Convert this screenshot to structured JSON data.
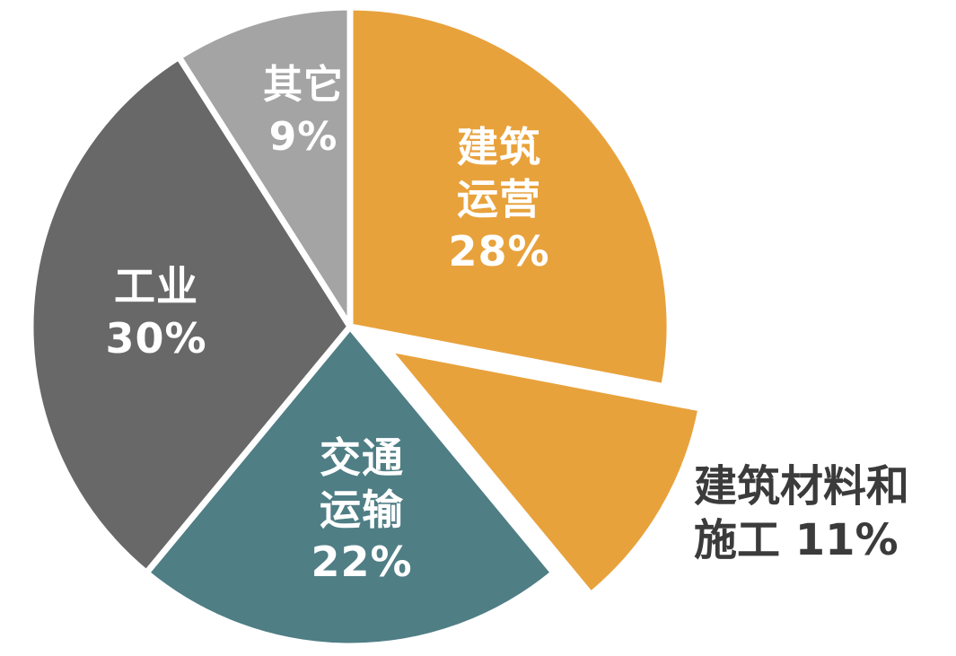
{
  "chart_data": {
    "type": "pie",
    "title": "",
    "legend_position": "none",
    "background": "#FFFFFF",
    "inside_label_color": "#FFFFFF",
    "start_angle_deg": 0,
    "direction": "clockwise",
    "slices": [
      {
        "id": "building-operations",
        "label": "建筑运营",
        "value": 28,
        "color": "#E8A23C",
        "exploded": false,
        "label_position": "inside",
        "lines": [
          "建筑",
          "运营",
          "28%"
        ]
      },
      {
        "id": "building-materials-construction",
        "label": "建筑材料和施工",
        "value": 11,
        "color": "#E8A23C",
        "exploded": true,
        "label_position": "outside",
        "label_color": "#3B3B3B",
        "lines": [
          "建筑材料和",
          "施工 11%"
        ]
      },
      {
        "id": "transportation",
        "label": "交通运输",
        "value": 22,
        "color": "#4F7E85",
        "exploded": false,
        "label_position": "inside",
        "lines": [
          "交通",
          "运输",
          "22%"
        ]
      },
      {
        "id": "industry",
        "label": "工业",
        "value": 30,
        "color": "#686868",
        "exploded": false,
        "label_position": "inside",
        "lines": [
          "工业",
          "30%"
        ]
      },
      {
        "id": "other",
        "label": "其它",
        "value": 9,
        "color": "#A4A4A4",
        "exploded": false,
        "label_position": "inside",
        "lines": [
          "其它",
          "9%"
        ]
      }
    ]
  }
}
